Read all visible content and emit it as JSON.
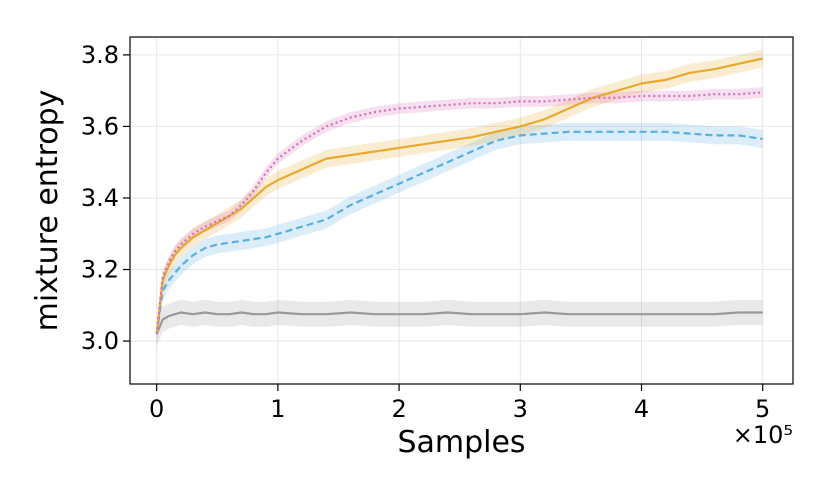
{
  "chart_data": {
    "type": "line",
    "xlabel": "Samples",
    "ylabel": "mixture entropy",
    "x_offset_label": "×10⁵",
    "x_scale": 100000,
    "xlim": [
      -0.22,
      5.25
    ],
    "ylim": [
      2.88,
      3.85
    ],
    "grid": true,
    "legend": "none",
    "xticks": [
      0,
      1,
      2,
      3,
      4,
      5
    ],
    "xtick_labels": [
      "0",
      "1",
      "2",
      "3",
      "4",
      "5"
    ],
    "yticks": [
      3.0,
      3.2,
      3.4,
      3.6,
      3.8
    ],
    "ytick_labels": [
      "3.0",
      "3.2",
      "3.4",
      "3.6",
      "3.8"
    ],
    "x": [
      0,
      0.05,
      0.1,
      0.15,
      0.2,
      0.3,
      0.4,
      0.5,
      0.6,
      0.7,
      0.8,
      0.9,
      1.0,
      1.2,
      1.4,
      1.6,
      1.8,
      2.0,
      2.2,
      2.4,
      2.6,
      2.8,
      3.0,
      3.2,
      3.4,
      3.6,
      3.8,
      4.0,
      4.2,
      4.4,
      4.6,
      4.8,
      5.0
    ],
    "series": [
      {
        "color": "#999999",
        "dash": "solid",
        "band": 0.035,
        "values": [
          3.02,
          3.06,
          3.07,
          3.075,
          3.08,
          3.075,
          3.08,
          3.075,
          3.075,
          3.08,
          3.075,
          3.075,
          3.08,
          3.075,
          3.075,
          3.08,
          3.075,
          3.075,
          3.075,
          3.08,
          3.075,
          3.075,
          3.075,
          3.08,
          3.075,
          3.075,
          3.075,
          3.075,
          3.075,
          3.075,
          3.075,
          3.08,
          3.08
        ]
      },
      {
        "color": "#5aafe0",
        "dash": "dashed",
        "band": 0.025,
        "values": [
          3.02,
          3.14,
          3.17,
          3.19,
          3.21,
          3.24,
          3.26,
          3.27,
          3.275,
          3.28,
          3.285,
          3.29,
          3.3,
          3.32,
          3.34,
          3.38,
          3.41,
          3.44,
          3.47,
          3.5,
          3.53,
          3.56,
          3.575,
          3.58,
          3.585,
          3.585,
          3.585,
          3.585,
          3.585,
          3.58,
          3.575,
          3.575,
          3.565
        ]
      },
      {
        "color": "#e8aa2e",
        "dash": "solid",
        "band": 0.025,
        "values": [
          3.02,
          3.17,
          3.21,
          3.24,
          3.26,
          3.29,
          3.31,
          3.33,
          3.35,
          3.37,
          3.4,
          3.43,
          3.45,
          3.48,
          3.51,
          3.52,
          3.53,
          3.54,
          3.55,
          3.56,
          3.57,
          3.585,
          3.6,
          3.62,
          3.65,
          3.68,
          3.7,
          3.72,
          3.73,
          3.75,
          3.76,
          3.775,
          3.79
        ]
      },
      {
        "color": "#d86fb8",
        "dash": "dotted",
        "band": 0.015,
        "values": [
          3.02,
          3.18,
          3.22,
          3.25,
          3.27,
          3.3,
          3.32,
          3.335,
          3.35,
          3.38,
          3.42,
          3.47,
          3.51,
          3.56,
          3.6,
          3.625,
          3.64,
          3.65,
          3.655,
          3.66,
          3.665,
          3.665,
          3.67,
          3.67,
          3.675,
          3.68,
          3.68,
          3.685,
          3.685,
          3.685,
          3.69,
          3.69,
          3.695
        ]
      }
    ]
  }
}
